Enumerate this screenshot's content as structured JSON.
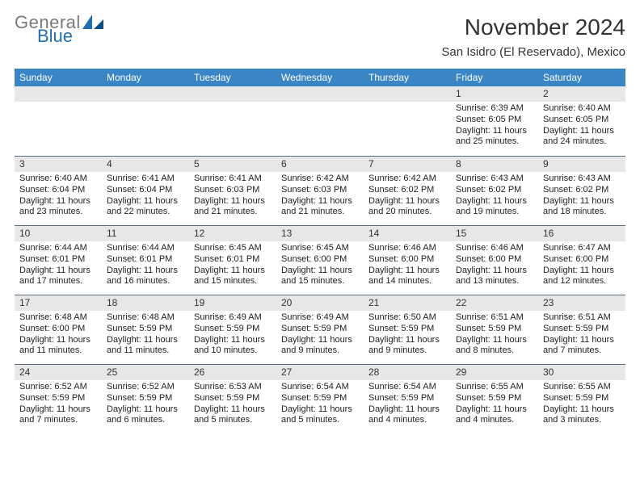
{
  "logo": {
    "word1": "General",
    "word2": "Blue"
  },
  "title": "November 2024",
  "location": "San Isidro (El Reservado), Mexico",
  "colors": {
    "header_blue": "#3a85c6",
    "logo_gray": "#7a7a7a",
    "logo_blue": "#1f6fb2",
    "cell_bg": "#e7e7e8",
    "rule": "#5c6b7a",
    "background": "#ffffff"
  },
  "typography": {
    "title_fontsize": 28,
    "location_fontsize": 15,
    "dayheader_fontsize": 12,
    "cell_fontsize": 11
  },
  "day_headers": [
    "Sunday",
    "Monday",
    "Tuesday",
    "Wednesday",
    "Thursday",
    "Friday",
    "Saturday"
  ],
  "weeks": [
    [
      null,
      null,
      null,
      null,
      null,
      {
        "n": "1",
        "sunrise": "Sunrise: 6:39 AM",
        "sunset": "Sunset: 6:05 PM",
        "daylight": "Daylight: 11 hours and 25 minutes."
      },
      {
        "n": "2",
        "sunrise": "Sunrise: 6:40 AM",
        "sunset": "Sunset: 6:05 PM",
        "daylight": "Daylight: 11 hours and 24 minutes."
      }
    ],
    [
      {
        "n": "3",
        "sunrise": "Sunrise: 6:40 AM",
        "sunset": "Sunset: 6:04 PM",
        "daylight": "Daylight: 11 hours and 23 minutes."
      },
      {
        "n": "4",
        "sunrise": "Sunrise: 6:41 AM",
        "sunset": "Sunset: 6:04 PM",
        "daylight": "Daylight: 11 hours and 22 minutes."
      },
      {
        "n": "5",
        "sunrise": "Sunrise: 6:41 AM",
        "sunset": "Sunset: 6:03 PM",
        "daylight": "Daylight: 11 hours and 21 minutes."
      },
      {
        "n": "6",
        "sunrise": "Sunrise: 6:42 AM",
        "sunset": "Sunset: 6:03 PM",
        "daylight": "Daylight: 11 hours and 21 minutes."
      },
      {
        "n": "7",
        "sunrise": "Sunrise: 6:42 AM",
        "sunset": "Sunset: 6:02 PM",
        "daylight": "Daylight: 11 hours and 20 minutes."
      },
      {
        "n": "8",
        "sunrise": "Sunrise: 6:43 AM",
        "sunset": "Sunset: 6:02 PM",
        "daylight": "Daylight: 11 hours and 19 minutes."
      },
      {
        "n": "9",
        "sunrise": "Sunrise: 6:43 AM",
        "sunset": "Sunset: 6:02 PM",
        "daylight": "Daylight: 11 hours and 18 minutes."
      }
    ],
    [
      {
        "n": "10",
        "sunrise": "Sunrise: 6:44 AM",
        "sunset": "Sunset: 6:01 PM",
        "daylight": "Daylight: 11 hours and 17 minutes."
      },
      {
        "n": "11",
        "sunrise": "Sunrise: 6:44 AM",
        "sunset": "Sunset: 6:01 PM",
        "daylight": "Daylight: 11 hours and 16 minutes."
      },
      {
        "n": "12",
        "sunrise": "Sunrise: 6:45 AM",
        "sunset": "Sunset: 6:01 PM",
        "daylight": "Daylight: 11 hours and 15 minutes."
      },
      {
        "n": "13",
        "sunrise": "Sunrise: 6:45 AM",
        "sunset": "Sunset: 6:00 PM",
        "daylight": "Daylight: 11 hours and 15 minutes."
      },
      {
        "n": "14",
        "sunrise": "Sunrise: 6:46 AM",
        "sunset": "Sunset: 6:00 PM",
        "daylight": "Daylight: 11 hours and 14 minutes."
      },
      {
        "n": "15",
        "sunrise": "Sunrise: 6:46 AM",
        "sunset": "Sunset: 6:00 PM",
        "daylight": "Daylight: 11 hours and 13 minutes."
      },
      {
        "n": "16",
        "sunrise": "Sunrise: 6:47 AM",
        "sunset": "Sunset: 6:00 PM",
        "daylight": "Daylight: 11 hours and 12 minutes."
      }
    ],
    [
      {
        "n": "17",
        "sunrise": "Sunrise: 6:48 AM",
        "sunset": "Sunset: 6:00 PM",
        "daylight": "Daylight: 11 hours and 11 minutes."
      },
      {
        "n": "18",
        "sunrise": "Sunrise: 6:48 AM",
        "sunset": "Sunset: 5:59 PM",
        "daylight": "Daylight: 11 hours and 11 minutes."
      },
      {
        "n": "19",
        "sunrise": "Sunrise: 6:49 AM",
        "sunset": "Sunset: 5:59 PM",
        "daylight": "Daylight: 11 hours and 10 minutes."
      },
      {
        "n": "20",
        "sunrise": "Sunrise: 6:49 AM",
        "sunset": "Sunset: 5:59 PM",
        "daylight": "Daylight: 11 hours and 9 minutes."
      },
      {
        "n": "21",
        "sunrise": "Sunrise: 6:50 AM",
        "sunset": "Sunset: 5:59 PM",
        "daylight": "Daylight: 11 hours and 9 minutes."
      },
      {
        "n": "22",
        "sunrise": "Sunrise: 6:51 AM",
        "sunset": "Sunset: 5:59 PM",
        "daylight": "Daylight: 11 hours and 8 minutes."
      },
      {
        "n": "23",
        "sunrise": "Sunrise: 6:51 AM",
        "sunset": "Sunset: 5:59 PM",
        "daylight": "Daylight: 11 hours and 7 minutes."
      }
    ],
    [
      {
        "n": "24",
        "sunrise": "Sunrise: 6:52 AM",
        "sunset": "Sunset: 5:59 PM",
        "daylight": "Daylight: 11 hours and 7 minutes."
      },
      {
        "n": "25",
        "sunrise": "Sunrise: 6:52 AM",
        "sunset": "Sunset: 5:59 PM",
        "daylight": "Daylight: 11 hours and 6 minutes."
      },
      {
        "n": "26",
        "sunrise": "Sunrise: 6:53 AM",
        "sunset": "Sunset: 5:59 PM",
        "daylight": "Daylight: 11 hours and 5 minutes."
      },
      {
        "n": "27",
        "sunrise": "Sunrise: 6:54 AM",
        "sunset": "Sunset: 5:59 PM",
        "daylight": "Daylight: 11 hours and 5 minutes."
      },
      {
        "n": "28",
        "sunrise": "Sunrise: 6:54 AM",
        "sunset": "Sunset: 5:59 PM",
        "daylight": "Daylight: 11 hours and 4 minutes."
      },
      {
        "n": "29",
        "sunrise": "Sunrise: 6:55 AM",
        "sunset": "Sunset: 5:59 PM",
        "daylight": "Daylight: 11 hours and 4 minutes."
      },
      {
        "n": "30",
        "sunrise": "Sunrise: 6:55 AM",
        "sunset": "Sunset: 5:59 PM",
        "daylight": "Daylight: 11 hours and 3 minutes."
      }
    ]
  ]
}
